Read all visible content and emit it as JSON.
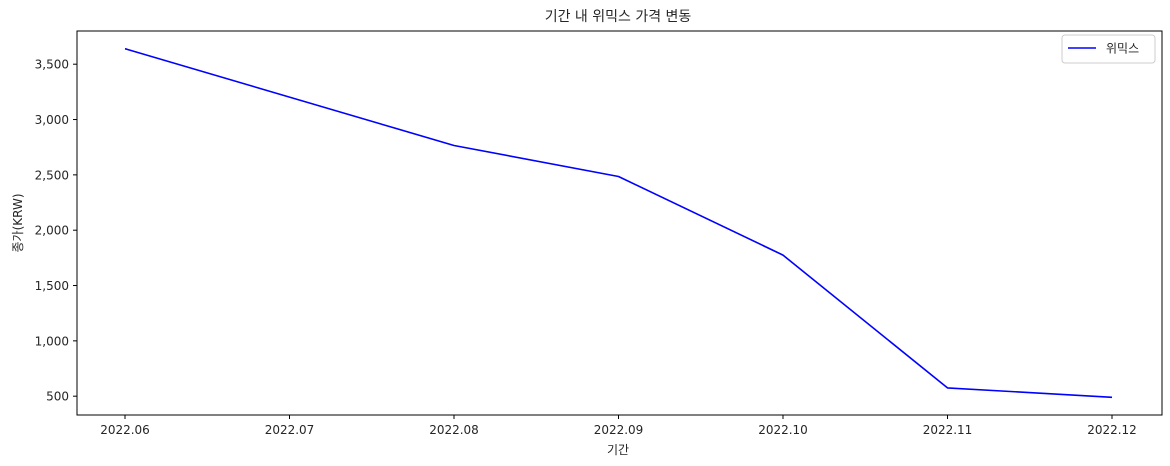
{
  "chart_data": {
    "type": "line",
    "title": "기간 내 위믹스 가격 변동",
    "xlabel": "기간",
    "ylabel": "종가(KRW)",
    "categories": [
      "2022.06",
      "2022.07",
      "2022.08",
      "2022.09",
      "2022.10",
      "2022.11",
      "2022.12"
    ],
    "x": [
      "2022.06",
      "2022.08",
      "2022.09",
      "2022.10",
      "2022.11",
      "2022.12"
    ],
    "series": [
      {
        "name": "위믹스",
        "color": "#0000ff",
        "values": [
          3640,
          2765,
          2485,
          1775,
          575,
          490
        ]
      }
    ],
    "ylim": [
      330,
      3800
    ],
    "yticks": [
      500,
      1000,
      1500,
      2000,
      2500,
      3000,
      3500
    ],
    "ytick_labels": [
      "500",
      "1,000",
      "1,500",
      "2,000",
      "2,500",
      "3,000",
      "3,500"
    ],
    "grid": false,
    "legend": "top-right"
  }
}
